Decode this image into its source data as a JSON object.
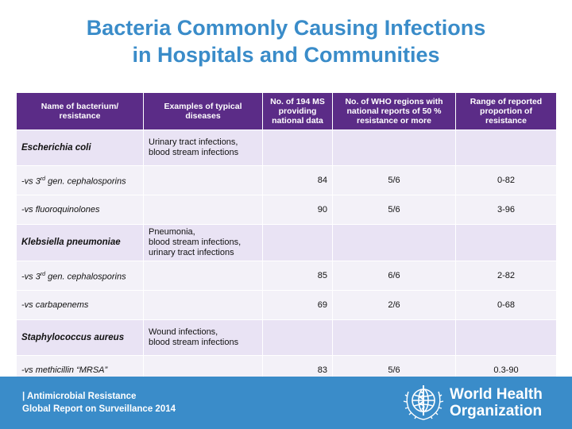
{
  "title": {
    "line1": "Bacteria Commonly Causing Infections",
    "line2": "in Hospitals and Communities"
  },
  "table": {
    "headers": [
      "Name of bacterium/ resistance",
      "Examples of typical diseases",
      "No. of 194 MS providing national data",
      "No. of WHO regions with national reports of 50 % resistance or more",
      "Range of reported proportion of resistance"
    ],
    "rows": [
      {
        "kind": "group",
        "name": "Escherichia coli",
        "diseases": [
          "Urinary tract infections,",
          "blood stream infections"
        ],
        "ms": "",
        "regions": "",
        "range": ""
      },
      {
        "kind": "sub",
        "name_pre": "-vs 3",
        "name_sup": "rd",
        "name_post": " gen. cephalosporins",
        "diseases": [],
        "ms": "84",
        "regions": "5/6",
        "range": "0-82"
      },
      {
        "kind": "sub",
        "name_pre": "-vs fluoroquinolones",
        "name_sup": "",
        "name_post": "",
        "diseases": [],
        "ms": "90",
        "regions": "5/6",
        "range": "3-96"
      },
      {
        "kind": "group",
        "name": "Klebsiella pneumoniae",
        "diseases": [
          "Pneumonia,",
          "blood stream infections,",
          "urinary tract infections"
        ],
        "ms": "",
        "regions": "",
        "range": ""
      },
      {
        "kind": "sub",
        "name_pre": "-vs 3",
        "name_sup": "rd",
        "name_post": " gen. cephalosporins",
        "diseases": [],
        "ms": "85",
        "regions": "6/6",
        "range": "2-82"
      },
      {
        "kind": "sub",
        "name_pre": "-vs carbapenems",
        "name_sup": "",
        "name_post": "",
        "diseases": [],
        "ms": "69",
        "regions": "2/6",
        "range": "0-68"
      },
      {
        "kind": "group",
        "name": "Staphylococcus aureus",
        "diseases": [
          "Wound infections,",
          "blood stream infections"
        ],
        "ms": "",
        "regions": "",
        "range": ""
      },
      {
        "kind": "sub",
        "name_pre": "-vs methicillin “MRSA”",
        "name_sup": "",
        "name_post": "",
        "diseases": [],
        "ms": "83",
        "regions": "5/6",
        "range": "0.3-90"
      }
    ]
  },
  "footer": {
    "line1": "| Antimicrobial Resistance",
    "line2": "Global Report on Surveillance 2014",
    "org_line1": "World Health",
    "org_line2": "Organization",
    "logo_icon": "who-emblem-icon",
    "band_color": "#3a8cc9"
  },
  "colors": {
    "title": "#3a8cc9",
    "header_bg": "#5b2c87",
    "group_row_bg": "#e9e3f4",
    "sub_row_bg": "#f3f1f8"
  }
}
